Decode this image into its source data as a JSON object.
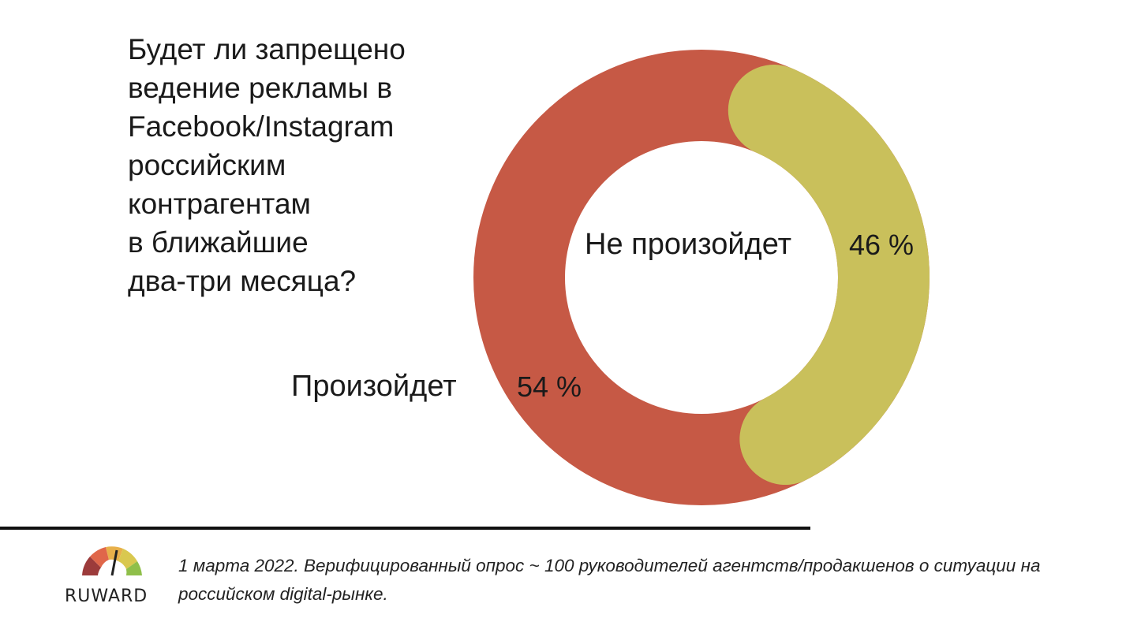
{
  "question": "Будет ли запрещено\nведение рекламы в\nFacebook/Instagram\nроссийским\nконтрагентам\nв ближайшие\nдва-три месяца?",
  "colors": {
    "yes": "#c65945",
    "no": "#c9c05b"
  },
  "chart_data": {
    "type": "pie",
    "style": "donut",
    "title": "",
    "slices": [
      {
        "label": "Не произойдет",
        "value": 46,
        "value_label": "46 %",
        "color": "#c9c05b"
      },
      {
        "label": "Произойдет",
        "value": 54,
        "value_label": "54 %",
        "color": "#c65945"
      }
    ]
  },
  "footer": {
    "logo_text": "RUWARD",
    "logo_icon": "gauge-icon",
    "note": "1 марта 2022. Верифицированный опрос ~ 100 руководителей агентств/продакшенов о ситуации на российском digital-рынке."
  }
}
